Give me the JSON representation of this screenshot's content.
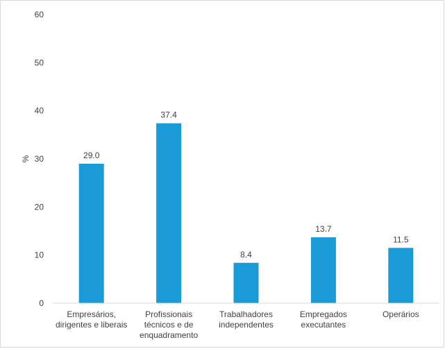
{
  "chart_data": {
    "type": "bar",
    "categories": [
      [
        "Empresários,",
        "dirigentes e liberais"
      ],
      [
        "Profissionais",
        "técnicos e de",
        "enquadramento"
      ],
      [
        "Trabalhadores",
        "independentes"
      ],
      [
        "Empregados",
        "executantes"
      ],
      [
        "Operários"
      ]
    ],
    "values": [
      29.0,
      37.4,
      8.4,
      13.7,
      11.5
    ],
    "data_labels": [
      "29.0",
      "37.4",
      "8.4",
      "13.7",
      "11.5"
    ],
    "ylabel": "%",
    "xlabel": "",
    "ylim": [
      0,
      60
    ],
    "yticks": [
      0,
      10,
      20,
      30,
      40,
      50,
      60
    ],
    "grid": false,
    "legend": "none",
    "bar_color": "#1a9ad6"
  }
}
